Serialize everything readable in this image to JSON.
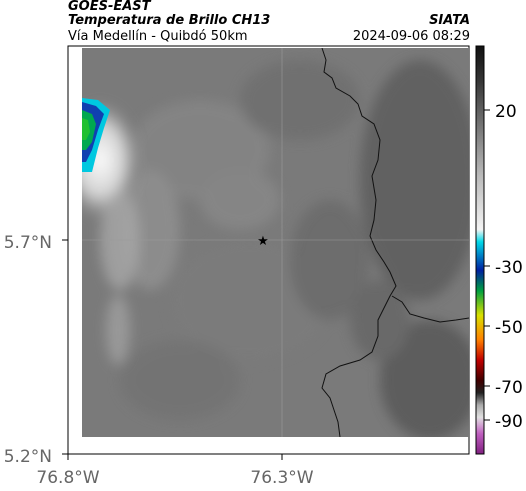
{
  "header": {
    "product": "GOES-EAST",
    "title": "Temperatura de Brillo CH13",
    "subtitle": "Vía Medellín - Quibdó 50km",
    "organization": "SIATA",
    "datetime": "2024-09-06 08:29"
  },
  "map": {
    "lat_ticks": [
      {
        "label": "5.7°N",
        "value": 5.7
      },
      {
        "label": "5.2°N",
        "value": 5.2
      }
    ],
    "lon_ticks": [
      {
        "label": "76.8°W",
        "value": -76.8
      },
      {
        "label": "76.3°W",
        "value": -76.3
      }
    ],
    "marker": {
      "symbol": "★",
      "name": "star-marker"
    },
    "base_color": "#7a7a7a",
    "border_color": "#111111"
  },
  "colorbar": {
    "ticks": [
      {
        "label": "20",
        "value": 20
      },
      {
        "label": "-30",
        "value": -30
      },
      {
        "label": "-50",
        "value": -50
      },
      {
        "label": "-70",
        "value": -70
      },
      {
        "label": "-90",
        "value": -90
      }
    ]
  }
}
